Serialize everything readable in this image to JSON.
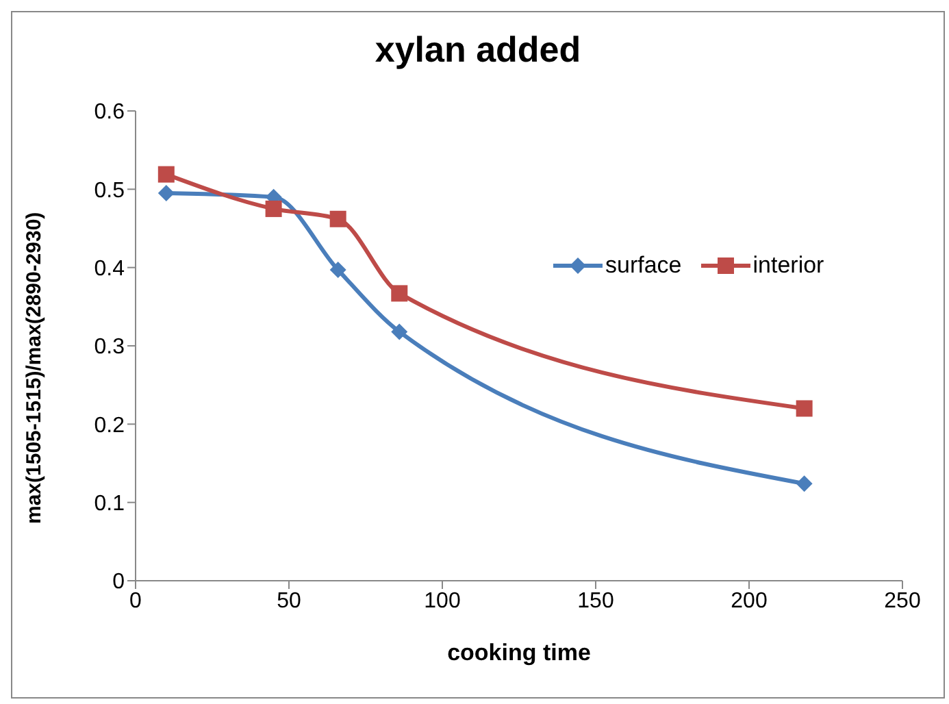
{
  "chart_data": {
    "type": "line",
    "title": "xylan added",
    "xlabel": "cooking time",
    "ylabel": "max(1505-1515)/max(2890-2930)",
    "xlim": [
      0,
      250
    ],
    "xticks": [
      0,
      50,
      100,
      150,
      200,
      250
    ],
    "ylim": [
      0,
      0.6
    ],
    "yticks": [
      0,
      0.1,
      0.2,
      0.3,
      0.4,
      0.5,
      0.6
    ],
    "grid": false,
    "legend": "right",
    "series": [
      {
        "name": "surface",
        "color": "#4a7ebb",
        "marker": "diamond",
        "x": [
          10,
          45,
          66,
          86,
          218
        ],
        "values": [
          0.495,
          0.49,
          0.397,
          0.318,
          0.124
        ]
      },
      {
        "name": "interior",
        "color": "#be4b48",
        "marker": "square",
        "x": [
          10,
          45,
          66,
          86,
          218
        ],
        "values": [
          0.519,
          0.475,
          0.462,
          0.367,
          0.22
        ]
      }
    ]
  }
}
